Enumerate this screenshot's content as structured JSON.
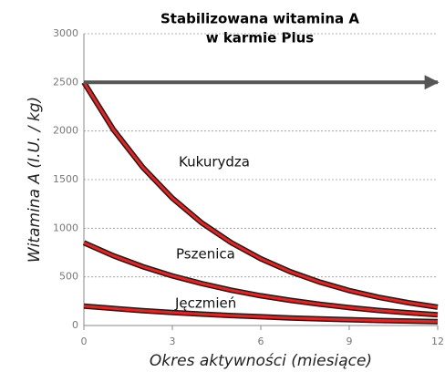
{
  "chart_data": {
    "type": "line",
    "title": [
      "Stabilizowana witamina A",
      "w karmie Plus"
    ],
    "x_label": "Okres aktywności (miesiące)",
    "y_label": "Witamina A (I.U. / kg)",
    "x": [
      0,
      1,
      2,
      3,
      4,
      5,
      6,
      7,
      8,
      9,
      10,
      11,
      12
    ],
    "series": [
      {
        "name": "Kukurydza",
        "color": "#d42a2a",
        "values": [
          2500,
          2015,
          1625,
          1310,
          1055,
          851,
          686,
          553,
          446,
          359,
          290,
          234,
          188
        ]
      },
      {
        "name": "Pszenica",
        "color": "#d42a2a",
        "values": [
          850,
          717,
          605,
          510,
          431,
          363,
          306,
          259,
          218,
          184,
          155,
          131,
          110
        ]
      },
      {
        "name": "Jęczmień",
        "color": "#d42a2a",
        "values": [
          200,
          175,
          153,
          134,
          117,
          102,
          90,
          78,
          68,
          60,
          52,
          46,
          40
        ]
      },
      {
        "color": "#555555",
        "x": [
          0,
          12
        ],
        "values": [
          2500,
          2500
        ],
        "style": "arrow"
      }
    ],
    "xlim": [
      0,
      12
    ],
    "xticks": [
      0,
      3,
      6,
      9,
      12
    ],
    "ylim": [
      0,
      3000
    ],
    "yticks": [
      0,
      500,
      1000,
      1500,
      2000,
      2500,
      3000
    ],
    "grid": true
  }
}
